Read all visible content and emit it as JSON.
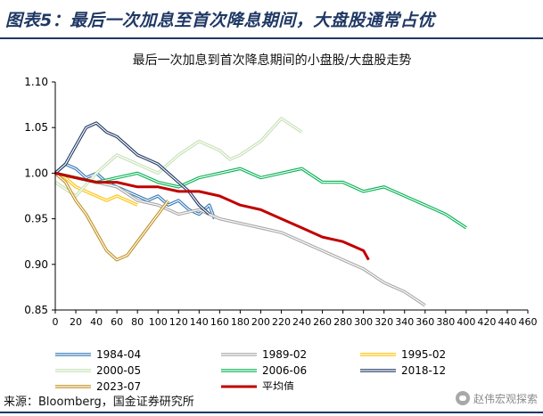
{
  "header": {
    "title": "图表5：最后一次加息至首次降息期间，大盘股通常占优"
  },
  "source": "来源：Bloomberg，国金证券研究所",
  "watermark": {
    "text": "赵伟宏观探索"
  },
  "colors": {
    "header_navy": "#1f3864"
  },
  "chart_data": {
    "type": "line",
    "title": "最后一次加息到首次降息期间的小盘股/大盘股走势",
    "xlim": [
      0,
      460
    ],
    "ylim": [
      0.85,
      1.1
    ],
    "x_ticks": [
      0,
      20,
      40,
      60,
      80,
      100,
      120,
      140,
      160,
      180,
      200,
      220,
      240,
      260,
      280,
      300,
      320,
      340,
      360,
      380,
      400,
      420,
      440,
      460
    ],
    "y_ticks": [
      0.85,
      0.9,
      0.95,
      1.0,
      1.05,
      1.1
    ],
    "y_tick_labels": [
      "0.85",
      "0.90",
      "0.95",
      "1.00",
      "1.05",
      "1.10"
    ],
    "grid": false,
    "legend_position": "bottom",
    "series": [
      {
        "name": "1984-04",
        "color": "#2e75b6",
        "style": "double",
        "x": [
          0,
          10,
          20,
          30,
          40,
          50,
          60,
          70,
          80,
          90,
          100,
          110,
          120,
          130,
          140,
          150,
          155
        ],
        "y": [
          1.0,
          1.01,
          1.005,
          0.995,
          1.0,
          0.99,
          0.985,
          0.98,
          0.975,
          0.97,
          0.975,
          0.965,
          0.97,
          0.96,
          0.955,
          0.965,
          0.95
        ]
      },
      {
        "name": "1989-02",
        "color": "#a6a6a6",
        "style": "double",
        "x": [
          0,
          20,
          40,
          60,
          80,
          100,
          120,
          140,
          160,
          180,
          200,
          220,
          240,
          260,
          280,
          300,
          320,
          340,
          360
        ],
        "y": [
          1.0,
          0.995,
          0.99,
          0.985,
          0.97,
          0.965,
          0.955,
          0.96,
          0.95,
          0.945,
          0.94,
          0.935,
          0.925,
          0.915,
          0.905,
          0.895,
          0.88,
          0.87,
          0.855
        ]
      },
      {
        "name": "1995-02",
        "color": "#ffc000",
        "style": "double",
        "x": [
          0,
          10,
          20,
          30,
          40,
          50,
          60,
          70,
          80
        ],
        "y": [
          1.0,
          0.995,
          0.985,
          0.98,
          0.975,
          0.97,
          0.975,
          0.97,
          0.965
        ]
      },
      {
        "name": "2000-05",
        "color": "#c5e0b4",
        "style": "double",
        "x": [
          0,
          20,
          40,
          60,
          80,
          100,
          120,
          140,
          150,
          160,
          170,
          180,
          200,
          220,
          240
        ],
        "y": [
          0.99,
          0.975,
          1.0,
          1.02,
          1.01,
          1.0,
          1.02,
          1.035,
          1.03,
          1.025,
          1.015,
          1.02,
          1.035,
          1.06,
          1.045
        ]
      },
      {
        "name": "2006-06",
        "color": "#00b050",
        "style": "double",
        "x": [
          0,
          20,
          40,
          60,
          80,
          100,
          120,
          140,
          160,
          180,
          200,
          220,
          240,
          260,
          280,
          300,
          320,
          340,
          360,
          380,
          400
        ],
        "y": [
          1.0,
          0.995,
          0.99,
          0.995,
          1.0,
          0.99,
          0.985,
          0.995,
          1.0,
          1.005,
          0.995,
          1.0,
          1.005,
          0.99,
          0.99,
          0.98,
          0.985,
          0.975,
          0.965,
          0.955,
          0.94
        ]
      },
      {
        "name": "2018-12",
        "color": "#1f3864",
        "style": "double",
        "x": [
          0,
          10,
          20,
          30,
          40,
          50,
          60,
          70,
          80,
          90,
          100,
          110,
          120,
          130,
          140,
          150
        ],
        "y": [
          1.0,
          1.01,
          1.03,
          1.05,
          1.055,
          1.045,
          1.04,
          1.03,
          1.02,
          1.015,
          1.01,
          1.0,
          0.99,
          0.98,
          0.965,
          0.955
        ]
      },
      {
        "name": "2023-07",
        "color": "#c09020",
        "style": "double",
        "x": [
          0,
          10,
          20,
          30,
          40,
          50,
          60,
          70,
          80,
          90,
          100,
          110
        ],
        "y": [
          1.0,
          0.99,
          0.97,
          0.955,
          0.935,
          0.915,
          0.905,
          0.91,
          0.925,
          0.94,
          0.955,
          0.97
        ]
      },
      {
        "name": "平均值",
        "color": "#c00000",
        "style": "bold",
        "x": [
          0,
          20,
          40,
          60,
          80,
          100,
          120,
          140,
          160,
          180,
          200,
          220,
          240,
          260,
          280,
          300,
          305
        ],
        "y": [
          1.0,
          0.995,
          0.99,
          0.99,
          0.985,
          0.985,
          0.98,
          0.98,
          0.975,
          0.965,
          0.96,
          0.95,
          0.94,
          0.93,
          0.925,
          0.915,
          0.905
        ]
      }
    ]
  }
}
